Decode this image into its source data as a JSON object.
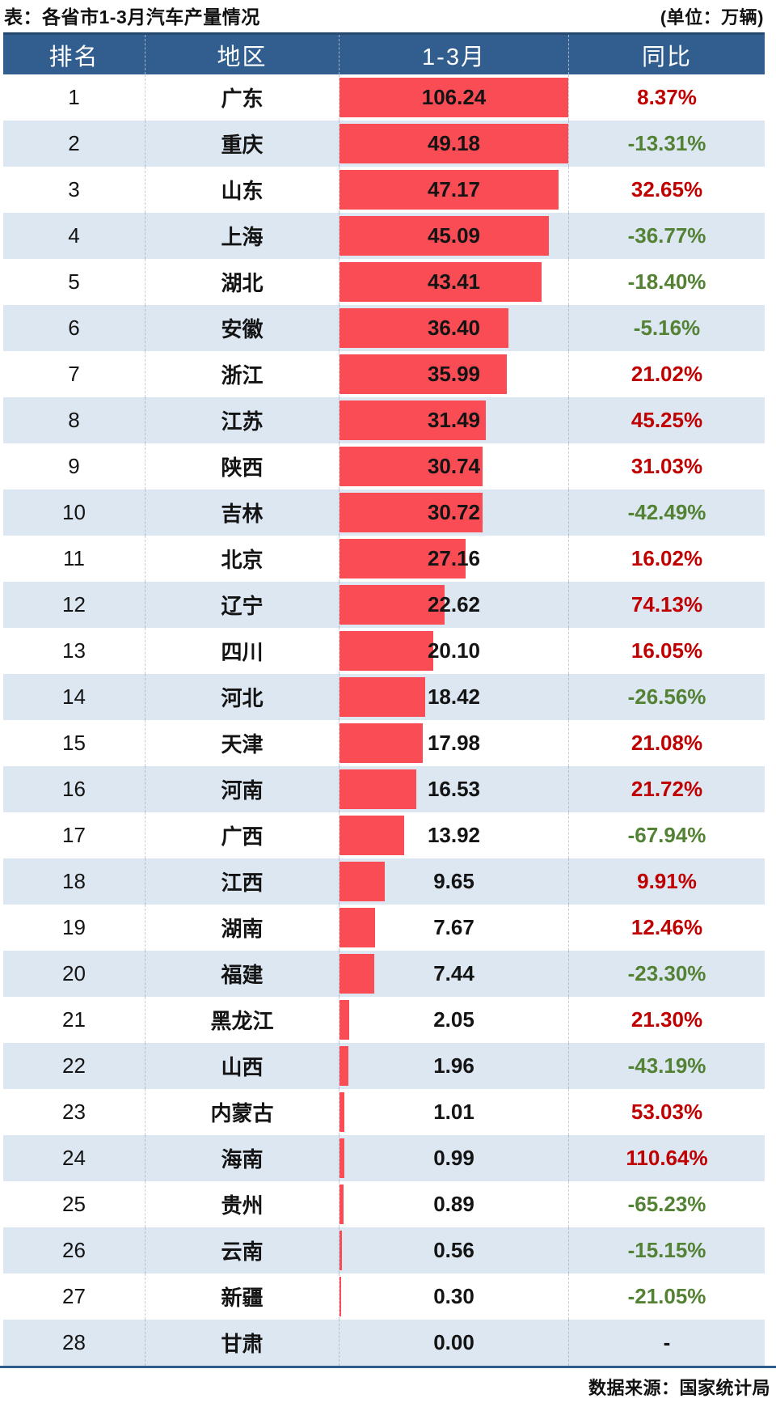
{
  "colors": {
    "header_bg": "#315E8E",
    "header_border": "#27496F",
    "row_alt_bg": "#DCE7F2",
    "bar_red": "#F94C55",
    "yoy_up_red": "#C00000",
    "yoy_down_green": "#548235",
    "bottom_border": "#2E5A8C"
  },
  "chart_data": {
    "type": "table",
    "title": "表：各省市1-3月汽车产量情况",
    "unit_label": "(单位：万辆)",
    "source": "数据来源：国家统计局",
    "columns": [
      "排名",
      "地区",
      "1-3月",
      "同比"
    ],
    "bar_column": "1-3月",
    "bar_scale_max": 49.18,
    "rows": [
      {
        "rank": "1",
        "region": "广东",
        "value": "106.24",
        "yoy": "8.37%"
      },
      {
        "rank": "2",
        "region": "重庆",
        "value": "49.18",
        "yoy": "-13.31%"
      },
      {
        "rank": "3",
        "region": "山东",
        "value": "47.17",
        "yoy": "32.65%"
      },
      {
        "rank": "4",
        "region": "上海",
        "value": "45.09",
        "yoy": "-36.77%"
      },
      {
        "rank": "5",
        "region": "湖北",
        "value": "43.41",
        "yoy": "-18.40%"
      },
      {
        "rank": "6",
        "region": "安徽",
        "value": "36.40",
        "yoy": "-5.16%"
      },
      {
        "rank": "7",
        "region": "浙江",
        "value": "35.99",
        "yoy": "21.02%"
      },
      {
        "rank": "8",
        "region": "江苏",
        "value": "31.49",
        "yoy": "45.25%"
      },
      {
        "rank": "9",
        "region": "陕西",
        "value": "30.74",
        "yoy": "31.03%"
      },
      {
        "rank": "10",
        "region": "吉林",
        "value": "30.72",
        "yoy": "-42.49%"
      },
      {
        "rank": "11",
        "region": "北京",
        "value": "27.16",
        "yoy": "16.02%"
      },
      {
        "rank": "12",
        "region": "辽宁",
        "value": "22.62",
        "yoy": "74.13%"
      },
      {
        "rank": "13",
        "region": "四川",
        "value": "20.10",
        "yoy": "16.05%"
      },
      {
        "rank": "14",
        "region": "河北",
        "value": "18.42",
        "yoy": "-26.56%"
      },
      {
        "rank": "15",
        "region": "天津",
        "value": "17.98",
        "yoy": "21.08%"
      },
      {
        "rank": "16",
        "region": "河南",
        "value": "16.53",
        "yoy": "21.72%"
      },
      {
        "rank": "17",
        "region": "广西",
        "value": "13.92",
        "yoy": "-67.94%"
      },
      {
        "rank": "18",
        "region": "江西",
        "value": "9.65",
        "yoy": "9.91%"
      },
      {
        "rank": "19",
        "region": "湖南",
        "value": "7.67",
        "yoy": "12.46%"
      },
      {
        "rank": "20",
        "region": "福建",
        "value": "7.44",
        "yoy": "-23.30%"
      },
      {
        "rank": "21",
        "region": "黑龙江",
        "value": "2.05",
        "yoy": "21.30%"
      },
      {
        "rank": "22",
        "region": "山西",
        "value": "1.96",
        "yoy": "-43.19%"
      },
      {
        "rank": "23",
        "region": "内蒙古",
        "value": "1.01",
        "yoy": "53.03%"
      },
      {
        "rank": "24",
        "region": "海南",
        "value": "0.99",
        "yoy": "110.64%"
      },
      {
        "rank": "25",
        "region": "贵州",
        "value": "0.89",
        "yoy": "-65.23%"
      },
      {
        "rank": "26",
        "region": "云南",
        "value": "0.56",
        "yoy": "-15.15%"
      },
      {
        "rank": "27",
        "region": "新疆",
        "value": "0.30",
        "yoy": "-21.05%"
      },
      {
        "rank": "28",
        "region": "甘肃",
        "value": "0.00",
        "yoy": "-"
      }
    ]
  }
}
